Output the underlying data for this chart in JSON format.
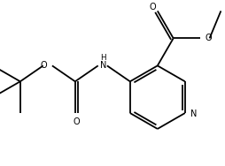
{
  "background": "#ffffff",
  "line_color": "#000000",
  "line_width": 1.3,
  "font_size": 7.0,
  "figsize": [
    2.54,
    1.88
  ],
  "dpi": 100,
  "xlim": [
    -0.5,
    10.5
  ],
  "ylim": [
    -0.5,
    7.5
  ]
}
